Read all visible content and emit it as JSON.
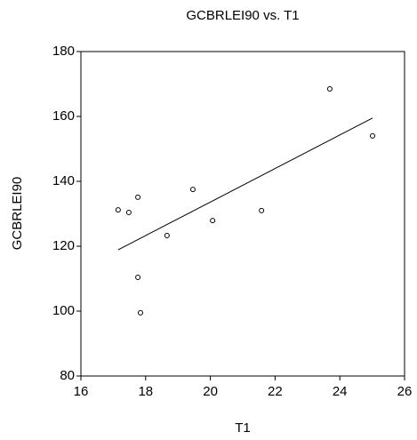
{
  "chart_data": {
    "type": "scatter",
    "title": "GCBRLEI90 vs. T1",
    "x_label": "T1",
    "y_label": "GCBRLEI90",
    "x": [
      17.15,
      17.48,
      17.76,
      19.46,
      18.66,
      20.07,
      21.58,
      23.69,
      25.01,
      17.76,
      17.84
    ],
    "values": [
      131.2,
      130.4,
      135.1,
      137.5,
      123.3,
      127.9,
      131.0,
      168.5,
      154.0,
      110.4,
      99.5
    ],
    "color": "#000000",
    "fit": {
      "x": [
        17.15,
        25.01
      ],
      "values": [
        118.9,
        159.5
      ]
    },
    "xlim": [
      16,
      26
    ],
    "xticks": [
      16,
      18,
      20,
      22,
      24,
      26
    ],
    "ylim": [
      80,
      180
    ],
    "yticks": [
      80,
      100,
      120,
      140,
      160,
      180
    ]
  }
}
